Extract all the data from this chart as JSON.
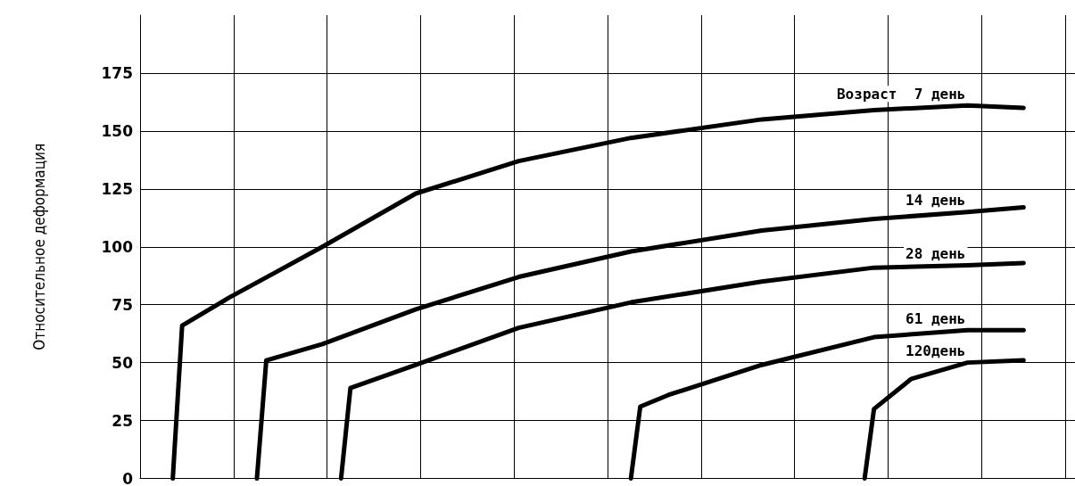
{
  "chart_data": {
    "type": "line",
    "ylabel": "Относительное деформация",
    "ylim": [
      0,
      200
    ],
    "categories": [
      null,
      null,
      null,
      null,
      null,
      null,
      null,
      null,
      null,
      null,
      null,
      null,
      null,
      null,
      null,
      null,
      null,
      null,
      null,
      null,
      null,
      null,
      null,
      null,
      null,
      null,
      null,
      null,
      null,
      null,
      null,
      null,
      null,
      null,
      null,
      null,
      null,
      null,
      null,
      null,
      null,
      null,
      null,
      null,
      null,
      null,
      null,
      null,
      null,
      null,
      null,
      null,
      null,
      null,
      null,
      null,
      null,
      null,
      null,
      null,
      null,
      null,
      null,
      null,
      null,
      null,
      null,
      null,
      null,
      null,
      null,
      null,
      null,
      null,
      null,
      null,
      null,
      null,
      null,
      null,
      null,
      null,
      null,
      null,
      null,
      null,
      null,
      null,
      null,
      null,
      null,
      null,
      null,
      null,
      null,
      null,
      null,
      null,
      null,
      null
    ],
    "yticks": [
      0,
      25,
      50,
      75,
      100,
      125,
      150,
      175
    ],
    "grid": true,
    "legend": false,
    "marker": "none",
    "line_style": "solid",
    "series": [
      {
        "name": "Возраст  7 день",
        "color": "#000000",
        "values": [
          null,
          null,
          null,
          0,
          66,
          null,
          null,
          null,
          null,
          78,
          null,
          null,
          null,
          null,
          89,
          null,
          null,
          null,
          null,
          100,
          null,
          null,
          null,
          null,
          null,
          null,
          null,
          null,
          null,
          123,
          null,
          null,
          null,
          null,
          null,
          null,
          null,
          null,
          null,
          null,
          137,
          null,
          null,
          null,
          null,
          null,
          null,
          null,
          null,
          null,
          null,
          null,
          147,
          null,
          null,
          null,
          null,
          null,
          null,
          null,
          null,
          null,
          null,
          null,
          null,
          null,
          155,
          null,
          null,
          null,
          null,
          null,
          null,
          null,
          null,
          null,
          null,
          null,
          159,
          null,
          null,
          null,
          null,
          null,
          null,
          null,
          null,
          null,
          161,
          null,
          null,
          null,
          null,
          null,
          160,
          null,
          null,
          null,
          null,
          null
        ]
      },
      {
        "name": "14 день",
        "color": "#000000",
        "values": [
          null,
          null,
          null,
          null,
          null,
          null,
          null,
          null,
          null,
          null,
          null,
          null,
          0,
          51,
          null,
          null,
          null,
          null,
          null,
          58,
          null,
          null,
          null,
          null,
          null,
          null,
          null,
          null,
          null,
          73,
          null,
          null,
          null,
          null,
          null,
          null,
          null,
          null,
          null,
          null,
          87,
          null,
          null,
          null,
          null,
          null,
          null,
          null,
          null,
          null,
          null,
          null,
          98,
          null,
          null,
          null,
          null,
          null,
          null,
          null,
          null,
          null,
          null,
          null,
          null,
          null,
          107,
          null,
          null,
          null,
          null,
          null,
          null,
          null,
          null,
          null,
          null,
          null,
          112,
          null,
          null,
          null,
          null,
          null,
          null,
          null,
          null,
          null,
          115,
          null,
          null,
          null,
          null,
          null,
          117,
          null,
          null,
          null,
          null,
          null
        ]
      },
      {
        "name": "28 день",
        "color": "#000000",
        "values": [
          null,
          null,
          null,
          null,
          null,
          null,
          null,
          null,
          null,
          null,
          null,
          null,
          null,
          null,
          null,
          null,
          null,
          null,
          null,
          null,
          null,
          0,
          39,
          null,
          null,
          null,
          null,
          null,
          null,
          49,
          null,
          null,
          null,
          null,
          null,
          null,
          null,
          null,
          null,
          null,
          65,
          null,
          null,
          null,
          null,
          null,
          null,
          null,
          null,
          null,
          null,
          null,
          76,
          null,
          null,
          null,
          null,
          null,
          null,
          null,
          null,
          null,
          null,
          null,
          null,
          null,
          85,
          null,
          null,
          null,
          null,
          null,
          null,
          null,
          null,
          null,
          null,
          null,
          91,
          null,
          null,
          null,
          null,
          null,
          null,
          null,
          null,
          null,
          92,
          null,
          null,
          null,
          null,
          null,
          93,
          null,
          null,
          null,
          null,
          null
        ]
      },
      {
        "name": "61 день",
        "color": "#000000",
        "values": [
          null,
          null,
          null,
          null,
          null,
          null,
          null,
          null,
          null,
          null,
          null,
          null,
          null,
          null,
          null,
          null,
          null,
          null,
          null,
          null,
          null,
          null,
          null,
          null,
          null,
          null,
          null,
          null,
          null,
          null,
          null,
          null,
          null,
          null,
          null,
          null,
          null,
          null,
          null,
          null,
          null,
          null,
          null,
          null,
          null,
          null,
          null,
          null,
          null,
          null,
          null,
          null,
          0,
          31,
          null,
          null,
          36,
          null,
          null,
          null,
          null,
          null,
          null,
          null,
          null,
          null,
          49,
          null,
          null,
          null,
          null,
          null,
          null,
          null,
          null,
          null,
          null,
          null,
          61,
          null,
          null,
          null,
          null,
          null,
          null,
          null,
          null,
          null,
          64,
          null,
          null,
          null,
          null,
          null,
          64,
          null,
          null,
          null,
          null,
          null
        ]
      },
      {
        "name": "120день",
        "color": "#000000",
        "values": [
          null,
          null,
          null,
          null,
          null,
          null,
          null,
          null,
          null,
          null,
          null,
          null,
          null,
          null,
          null,
          null,
          null,
          null,
          null,
          null,
          null,
          null,
          null,
          null,
          null,
          null,
          null,
          null,
          null,
          null,
          null,
          null,
          null,
          null,
          null,
          null,
          null,
          null,
          null,
          null,
          null,
          null,
          null,
          null,
          null,
          null,
          null,
          null,
          null,
          null,
          null,
          null,
          null,
          null,
          null,
          null,
          null,
          null,
          null,
          null,
          null,
          null,
          null,
          null,
          null,
          null,
          null,
          null,
          null,
          null,
          null,
          null,
          null,
          null,
          null,
          null,
          null,
          0,
          30,
          null,
          null,
          null,
          43,
          null,
          null,
          null,
          null,
          null,
          50,
          null,
          null,
          null,
          null,
          null,
          51,
          null,
          null,
          null,
          null,
          null
        ]
      }
    ]
  }
}
